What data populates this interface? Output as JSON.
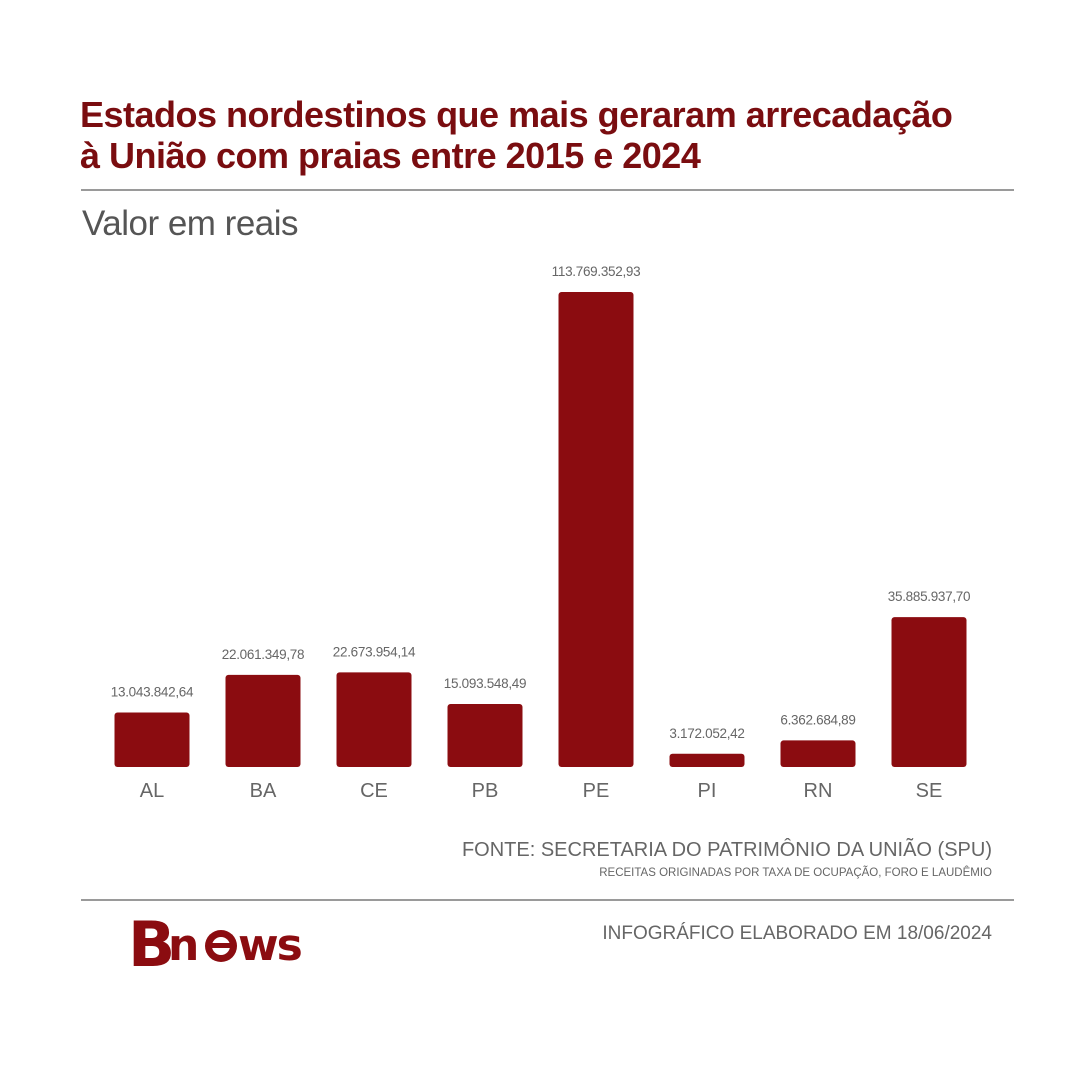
{
  "title_lines": [
    "Estados nordestinos que mais geraram arrecadação",
    "à União com praias entre 2015 e 2024"
  ],
  "subtitle": "Valor em reais",
  "source": "FONTE: SECRETARIA DO PATRIMÔNIO DA UNIÃO (SPU)",
  "source_note": "RECEITAS ORIGINADAS POR TAXA DE OCUPAÇÃO, FORO E LAUDÊMIO",
  "date_note": "INFOGRÁFICO ELABORADO EM 18/06/2024",
  "logo_text": "Bnews",
  "colors": {
    "bar": "#8b0c10",
    "title": "#7a0d10",
    "text": "#666666",
    "rule": "#9a9a9a"
  },
  "chart_data": {
    "type": "bar",
    "title": "Estados nordestinos que mais geraram arrecadação à União com praias entre 2015 e 2024",
    "ylabel": "Valor em reais",
    "categories": [
      "AL",
      "BA",
      "CE",
      "PB",
      "PE",
      "PI",
      "RN",
      "SE"
    ],
    "values": [
      13043842.64,
      22061349.78,
      22673954.14,
      15093548.49,
      113769352.93,
      3172052.42,
      6362684.89,
      35885937.7
    ],
    "value_labels": [
      "13.043.842,64",
      "22.061.349,78",
      "22.673.954,14",
      "15.093.548,49",
      "113.769.352,93",
      "3.172.052,42",
      "6.362.684,89",
      "35.885.937,70"
    ],
    "ylim": [
      0,
      113769352.93
    ],
    "grid": false,
    "legend": "none"
  }
}
